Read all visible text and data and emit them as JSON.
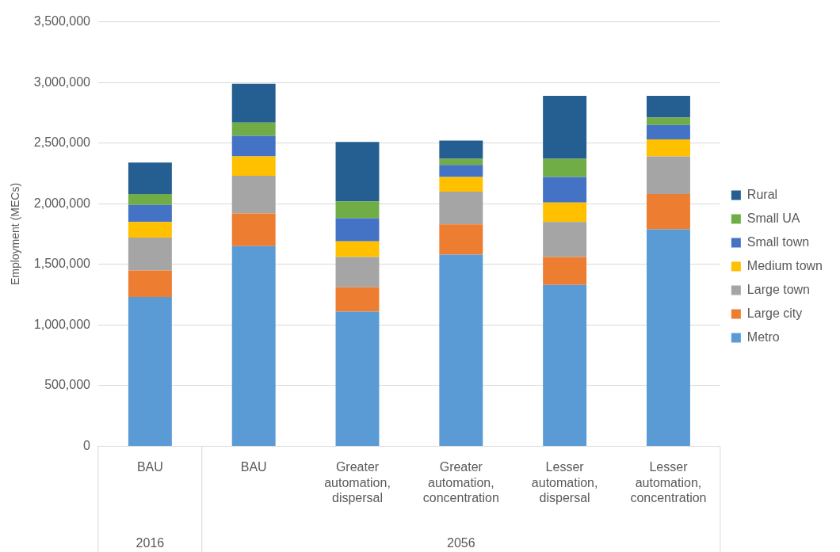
{
  "chart_data": {
    "type": "bar",
    "ylabel": "Employment (MECs)",
    "stacked": true,
    "grid": "y",
    "legend": "right",
    "categories": [
      "BAU",
      "BAU",
      "Greater automation, dispersal",
      "Greater automation, concentration",
      "Lesser automation, dispersal",
      "Lesser automation, concentration"
    ],
    "annotations": [
      "2016",
      "2056"
    ],
    "ylim": [
      0,
      3500000
    ],
    "yticks": [
      0,
      {
        "value": 500000,
        "label": "500,000"
      },
      {
        "value": 1000000,
        "label": "1,000,000"
      },
      {
        "value": 1500000,
        "label": "1,500,000"
      },
      {
        "value": 2000000,
        "label": "2,000,000"
      },
      {
        "value": 2500000,
        "label": "2,500,000"
      },
      {
        "value": 3000000,
        "label": "3,000,000"
      },
      {
        "value": 3500000,
        "label": "3,500,000"
      }
    ],
    "series": [
      {
        "name": "Metro",
        "color": "#5b9bd5",
        "values": [
          1230000,
          1650000,
          1110000,
          1580000,
          1330000,
          1790000
        ]
      },
      {
        "name": "Large city",
        "color": "#ed7d31",
        "values": [
          220000,
          270000,
          200000,
          250000,
          230000,
          290000
        ]
      },
      {
        "name": "Large town",
        "color": "#a5a5a5",
        "values": [
          270000,
          310000,
          250000,
          270000,
          290000,
          310000
        ]
      },
      {
        "name": "Medium town",
        "color": "#ffc000",
        "values": [
          130000,
          160000,
          130000,
          120000,
          160000,
          140000
        ]
      },
      {
        "name": "Small town",
        "color": "#4472c4",
        "values": [
          140000,
          170000,
          190000,
          100000,
          210000,
          120000
        ]
      },
      {
        "name": "Small UA",
        "color": "#70ad47",
        "values": [
          90000,
          110000,
          140000,
          50000,
          150000,
          60000
        ]
      },
      {
        "name": "Rural",
        "color": "#255e91",
        "values": [
          260000,
          320000,
          490000,
          150000,
          520000,
          180000
        ]
      }
    ]
  }
}
